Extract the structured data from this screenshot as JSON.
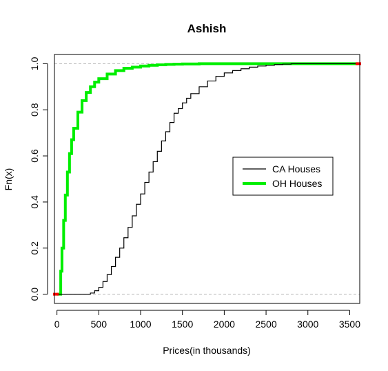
{
  "chart_data": {
    "type": "line",
    "subtype": "ecdf",
    "title": "Ashish",
    "xlabel": "Prices(in thousands)",
    "ylabel": "Fn(x)",
    "xlim": [
      -30,
      3620
    ],
    "ylim": [
      -0.04,
      1.04
    ],
    "xticks": [
      0,
      500,
      1000,
      1500,
      2000,
      2500,
      3000,
      3500
    ],
    "yticks": [
      0.0,
      0.2,
      0.4,
      0.6,
      0.8,
      1.0
    ],
    "reference_lines": [
      0,
      1
    ],
    "grid": false,
    "legend_position": "right",
    "series": [
      {
        "name": "CA Houses",
        "color": "#000000",
        "x": [
          0,
          350,
          400,
          450,
          500,
          550,
          600,
          650,
          700,
          750,
          800,
          850,
          900,
          950,
          1000,
          1050,
          1100,
          1150,
          1200,
          1250,
          1300,
          1350,
          1400,
          1450,
          1500,
          1550,
          1600,
          1700,
          1800,
          1900,
          2000,
          2100,
          2200,
          2300,
          2400,
          2500,
          2600,
          2700,
          2800,
          3000,
          3600
        ],
        "y": [
          0.0,
          0.0,
          0.005,
          0.015,
          0.03,
          0.055,
          0.085,
          0.12,
          0.16,
          0.2,
          0.245,
          0.29,
          0.34,
          0.39,
          0.435,
          0.485,
          0.53,
          0.575,
          0.62,
          0.665,
          0.705,
          0.745,
          0.785,
          0.805,
          0.83,
          0.85,
          0.87,
          0.9,
          0.925,
          0.945,
          0.96,
          0.97,
          0.978,
          0.985,
          0.99,
          0.993,
          0.996,
          0.998,
          1.0,
          1.0,
          1.0
        ]
      },
      {
        "name": "OH Houses",
        "color": "#00ee00",
        "x": [
          0,
          30,
          45,
          60,
          80,
          100,
          125,
          150,
          175,
          200,
          250,
          300,
          350,
          400,
          450,
          500,
          600,
          700,
          800,
          900,
          1000,
          1100,
          1200,
          1300,
          1400,
          1500,
          1700,
          2000,
          2500,
          3000,
          3600
        ],
        "y": [
          0.0,
          0.0,
          0.1,
          0.2,
          0.32,
          0.43,
          0.53,
          0.61,
          0.67,
          0.72,
          0.79,
          0.84,
          0.875,
          0.9,
          0.92,
          0.935,
          0.955,
          0.97,
          0.98,
          0.985,
          0.99,
          0.993,
          0.995,
          0.997,
          0.998,
          0.999,
          1.0,
          1.0,
          1.0,
          1.0,
          1.0
        ]
      }
    ]
  }
}
